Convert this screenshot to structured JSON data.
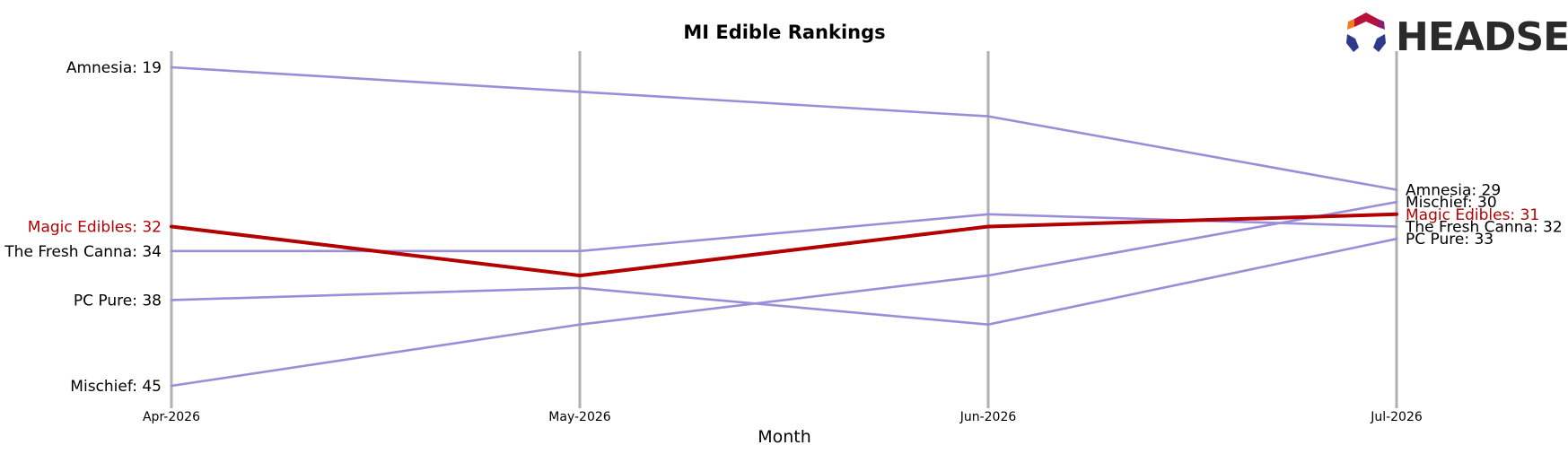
{
  "chart_data": {
    "type": "line",
    "title": "MI Edible Rankings",
    "xlabel": "Month",
    "ylabel": "",
    "categories": [
      "Apr-2026",
      "May-2026",
      "Jun-2026",
      "Jul-2026"
    ],
    "y_inverted": true,
    "ylim": [
      47,
      17
    ],
    "grid": false,
    "highlight_color": "#b30000",
    "default_color": "#9b8ed9",
    "vertical_line_color": "#b0b0b0",
    "series": [
      {
        "name": "Amnesia",
        "values": [
          19,
          21,
          23,
          29
        ],
        "highlight": false
      },
      {
        "name": "Magic Edibles",
        "values": [
          32,
          36,
          32,
          31
        ],
        "highlight": true
      },
      {
        "name": "The Fresh Canna",
        "values": [
          34,
          34,
          31,
          32
        ],
        "highlight": false
      },
      {
        "name": "PC Pure",
        "values": [
          38,
          37,
          40,
          33
        ],
        "highlight": false
      },
      {
        "name": "Mischief",
        "values": [
          45,
          40,
          36,
          30
        ],
        "highlight": false
      }
    ],
    "left_labels": [
      "Amnesia: 19",
      "Magic Edibles: 32",
      "The Fresh Canna: 34",
      "PC Pure: 38",
      "Mischief: 45"
    ],
    "right_labels": [
      "Amnesia: 29",
      "Mischief: 30",
      "Magic Edibles: 31",
      "The Fresh Canna: 32",
      "PC Pure: 33"
    ]
  },
  "logo": {
    "text": "HEADSET"
  }
}
